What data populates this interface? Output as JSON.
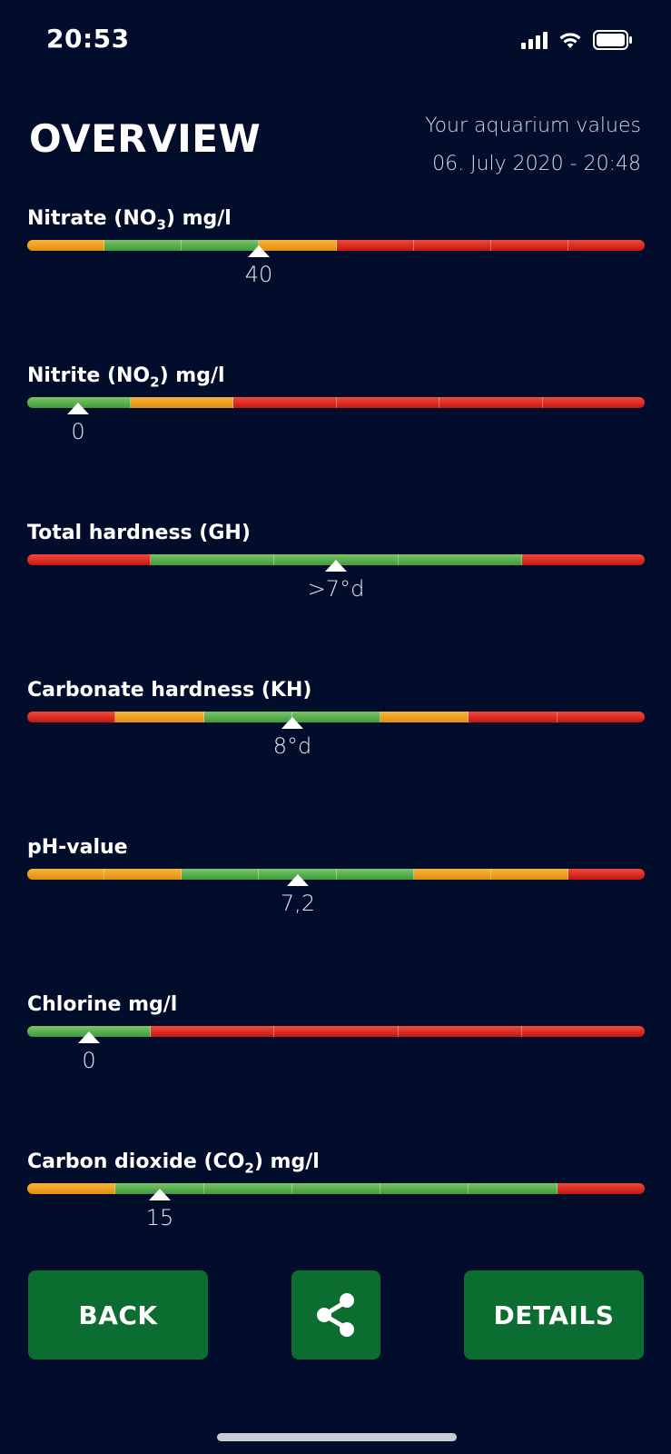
{
  "status_bar": {
    "time": "20:53",
    "signal_icon": "cellular-signal-icon",
    "wifi_icon": "wifi-icon",
    "battery_icon": "battery-icon"
  },
  "header": {
    "title": "OVERVIEW",
    "subtitle": "Your aquarium values",
    "datetime": "06. July 2020 - 20:48"
  },
  "colors": {
    "background": "#020d2b",
    "green": "#3f9a3a",
    "orange": "#e48c12",
    "red": "#c61613",
    "button": "#0b6e30"
  },
  "parameters": [
    {
      "label_pre": "Nitrate (NO",
      "label_sub": "3",
      "label_post": ") mg/l",
      "value": "40",
      "scale": [
        "orange",
        "green",
        "green",
        "orange",
        "red",
        "red",
        "red",
        "red"
      ],
      "marker_fraction": 0.375
    },
    {
      "label_pre": "Nitrite (NO",
      "label_sub": "2",
      "label_post": ") mg/l",
      "value": "0",
      "scale": [
        "green",
        "orange",
        "red",
        "red",
        "red",
        "red"
      ],
      "marker_fraction": 0.083
    },
    {
      "label_pre": "Total hardness (GH)",
      "label_sub": "",
      "label_post": "",
      "value": ">7°d",
      "scale": [
        "red",
        "green",
        "green",
        "green",
        "red"
      ],
      "marker_fraction": 0.5
    },
    {
      "label_pre": "Carbonate hardness (KH)",
      "label_sub": "",
      "label_post": "",
      "value": "8°d",
      "scale": [
        "red",
        "orange",
        "green",
        "green",
        "orange",
        "red",
        "red"
      ],
      "marker_fraction": 0.429
    },
    {
      "label_pre": "pH-value",
      "label_sub": "",
      "label_post": "",
      "value": "7,2",
      "scale": [
        "orange",
        "orange",
        "green",
        "green",
        "green",
        "orange",
        "orange",
        "red"
      ],
      "marker_fraction": 0.438
    },
    {
      "label_pre": "Chlorine mg/l",
      "label_sub": "",
      "label_post": "",
      "value": "0",
      "scale": [
        "green",
        "red",
        "red",
        "red",
        "red"
      ],
      "marker_fraction": 0.1
    },
    {
      "label_pre": "Carbon dioxide (CO",
      "label_sub": "2",
      "label_post": ") mg/l",
      "value": "15",
      "scale": [
        "orange",
        "green",
        "green",
        "green",
        "green",
        "green",
        "red"
      ],
      "marker_fraction": 0.214
    }
  ],
  "buttons": {
    "back": "BACK",
    "share_icon": "share-icon",
    "details": "DETAILS"
  }
}
